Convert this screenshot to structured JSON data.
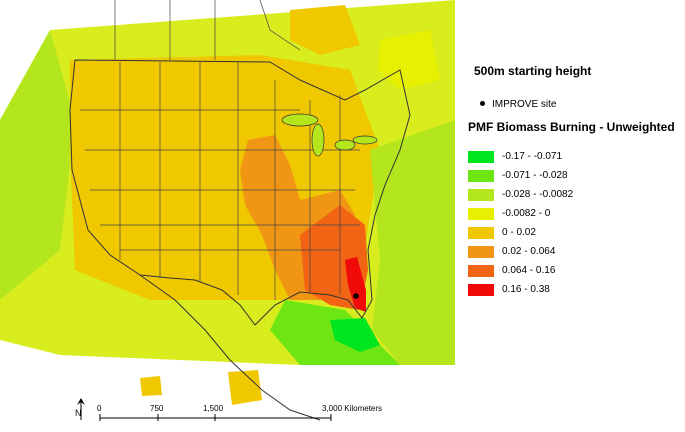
{
  "map": {
    "subtitle": "500m starting height",
    "site_marker_label": "IMPROVE site",
    "legend_title": "PMF Biomass Burning - Unweighted",
    "legend": [
      {
        "label": "-0.17 - -0.071",
        "color": "#00e61e"
      },
      {
        "label": "-0.071 - -0.028",
        "color": "#6ee614"
      },
      {
        "label": "-0.028 - -0.0082",
        "color": "#b4e61e"
      },
      {
        "label": "-0.0082 - 0",
        "color": "#e6f000"
      },
      {
        "label": "0 - 0.02",
        "color": "#f0c800"
      },
      {
        "label": "0.02 - 0.064",
        "color": "#f09614"
      },
      {
        "label": "0.064 - 0.16",
        "color": "#f06414"
      },
      {
        "label": "0.16 - 0.38",
        "color": "#f00a0a"
      }
    ],
    "scale_bar": {
      "ticks": [
        "0",
        "750",
        "1,500",
        "3,000 Kilometers"
      ]
    },
    "north_label": "N"
  }
}
